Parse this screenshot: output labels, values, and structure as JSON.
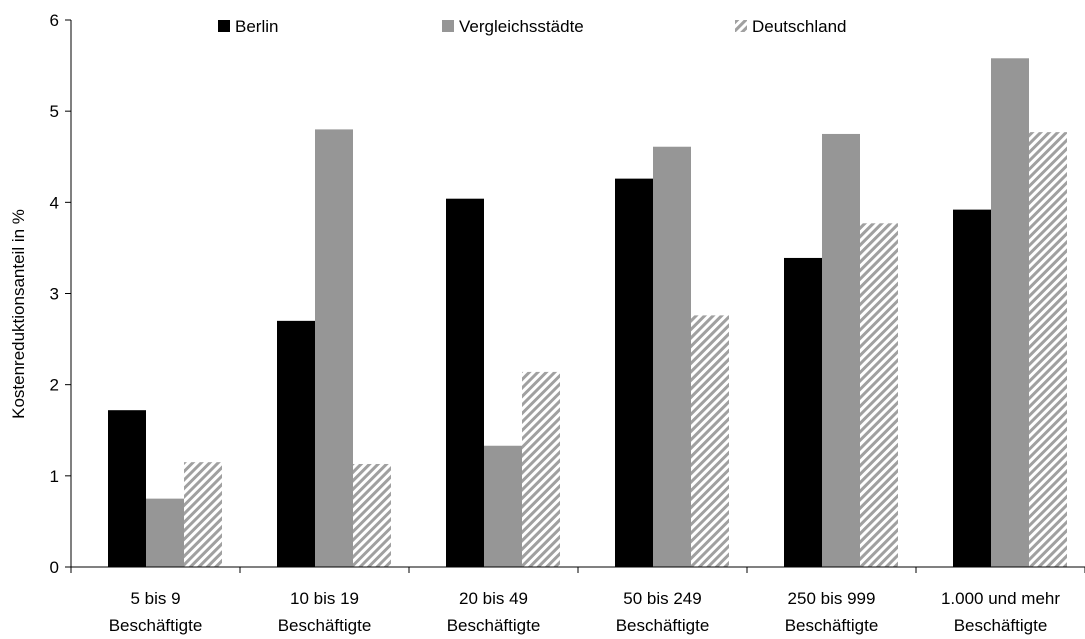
{
  "chart_data": {
    "type": "bar",
    "categories": [
      [
        "5 bis 9",
        "Beschäftigte"
      ],
      [
        "10 bis 19",
        "Beschäftigte"
      ],
      [
        "20 bis 49",
        "Beschäftigte"
      ],
      [
        "50 bis 249",
        "Beschäftigte"
      ],
      [
        "250 bis 999",
        "Beschäftigte"
      ],
      [
        "1.000 und mehr",
        "Beschäftigte"
      ]
    ],
    "series": [
      {
        "name": "Berlin",
        "color": "#000000",
        "pattern": "solid",
        "values": [
          1.72,
          2.7,
          4.04,
          4.26,
          3.39,
          3.92
        ]
      },
      {
        "name": "Vergleichsstädte",
        "color": "#969696",
        "pattern": "solid",
        "values": [
          0.75,
          4.8,
          1.33,
          4.61,
          4.75,
          5.58
        ]
      },
      {
        "name": "Deutschland",
        "color": "#a0a0a0",
        "pattern": "diagonal-hatch",
        "values": [
          1.15,
          1.13,
          2.14,
          2.76,
          3.77,
          4.77
        ]
      }
    ],
    "ylabel": "Kostenreduktionsanteil in %",
    "ylim": [
      0,
      6
    ],
    "yticks": [
      0,
      1,
      2,
      3,
      4,
      5,
      6
    ],
    "grid": false,
    "legend_position": "top"
  }
}
